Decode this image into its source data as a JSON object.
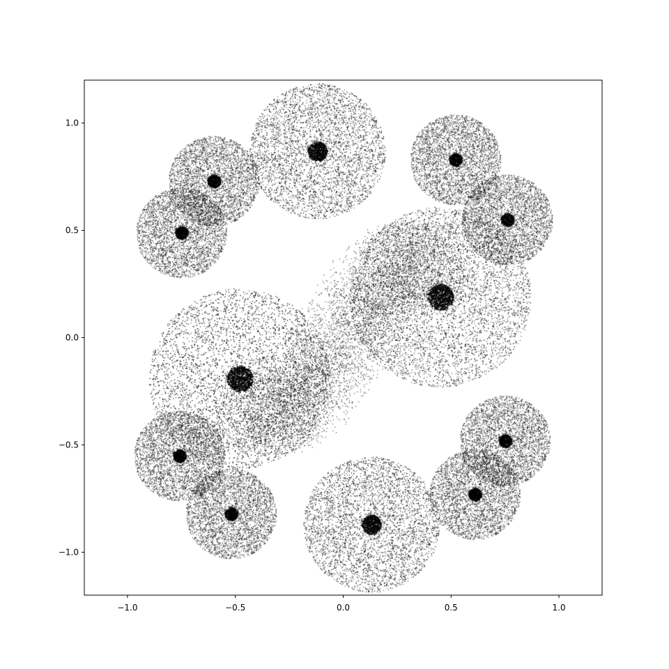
{
  "chart_data": {
    "type": "scatter",
    "title": "",
    "xlabel": "",
    "ylabel": "",
    "xlim": [
      -1.2,
      1.2
    ],
    "ylim": [
      -1.2,
      1.2
    ],
    "grid": false,
    "legend": "none",
    "x_ticks": [
      -1.0,
      -0.5,
      0.0,
      0.5,
      1.0
    ],
    "y_ticks": [
      -1.0,
      -0.5,
      0.0,
      0.5,
      1.0
    ],
    "x_tick_labels": [
      "−1.0",
      "−0.5",
      "0.0",
      "0.5",
      "1.0"
    ],
    "y_tick_labels": [
      "−1.0",
      "−0.5",
      "0.0",
      "0.5",
      "1.0"
    ],
    "marker_color": "#000000",
    "spiral_centers": [
      {
        "x": 0.45,
        "y": 0.19
      },
      {
        "x": -0.48,
        "y": -0.19
      },
      {
        "x": -0.12,
        "y": 0.87
      },
      {
        "x": 0.13,
        "y": -0.87
      },
      {
        "x": 0.52,
        "y": 0.83
      },
      {
        "x": -0.6,
        "y": 0.73
      },
      {
        "x": 0.61,
        "y": -0.73
      },
      {
        "x": -0.52,
        "y": -0.82
      },
      {
        "x": -0.75,
        "y": 0.49
      },
      {
        "x": 0.75,
        "y": -0.48
      },
      {
        "x": 0.76,
        "y": 0.55
      },
      {
        "x": -0.76,
        "y": -0.55
      }
    ]
  }
}
